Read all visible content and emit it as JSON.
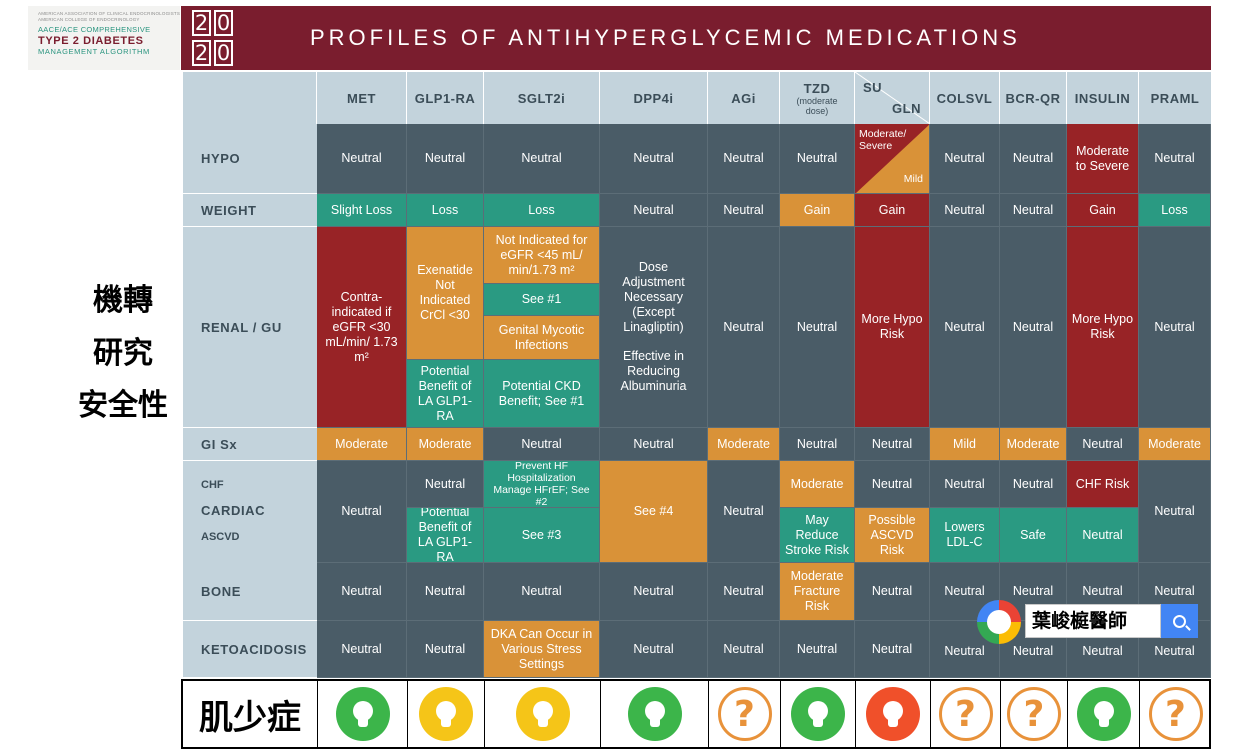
{
  "logo": {
    "line1": "AMERICAN ASSOCIATION OF CLINICAL ENDOCRINOLOGISTS",
    "line1b": "AMERICAN COLLEGE OF ENDOCRINOLOGY",
    "line2": "AACE/ACE COMPREHENSIVE",
    "line3": "TYPE 2 DIABETES",
    "line4": "MANAGEMENT ALGORITHM",
    "year_digits": [
      "2",
      "0",
      "2",
      "0"
    ]
  },
  "banner_title": "PROFILES OF ANTIHYPERGLYCEMIC MEDICATIONS",
  "side_text": [
    "機轉",
    "研究",
    "安全性"
  ],
  "columns": {
    "met": "MET",
    "glp1": "GLP1-RA",
    "sglt2": "SGLT2i",
    "dpp4": "DPP4i",
    "agi": "AGi",
    "tzd": "TZD",
    "tzd_note": "(moderate dose)",
    "su": "SU",
    "gln": "GLN",
    "colsvl": "COLSVL",
    "bcrqr": "BCR-QR",
    "insulin": "INSULIN",
    "praml": "PRAML"
  },
  "rows": {
    "hypo": "HYPO",
    "weight": "WEIGHT",
    "renal": "RENAL / GU",
    "gisx": "GI Sx",
    "chf": "CHF",
    "cardiac": "CARDIAC",
    "ascvd": "ASCVD",
    "bone": "BONE",
    "keto": "KETOACIDOSIS"
  },
  "cells": {
    "hypo": {
      "met": "Neutral",
      "glp1": "Neutral",
      "sglt2": "Neutral",
      "dpp4": "Neutral",
      "agi": "Neutral",
      "tzd": "Neutral",
      "su": "Moderate/ Severe",
      "gln": "Mild",
      "colsvl": "Neutral",
      "bcrqr": "Neutral",
      "insulin": "Moderate to Severe",
      "praml": "Neutral"
    },
    "weight": {
      "met": "Slight Loss",
      "glp1": "Loss",
      "sglt2": "Loss",
      "dpp4": "Neutral",
      "agi": "Neutral",
      "tzd": "Gain",
      "su": "Gain",
      "colsvl": "Neutral",
      "bcrqr": "Neutral",
      "insulin": "Gain",
      "praml": "Loss"
    },
    "renal": {
      "met": "Contra-indicated if eGFR <30 mL/min/ 1.73 m²",
      "glp1_top": "Exenatide Not Indicated CrCl <30",
      "glp1_bottom": "Potential Benefit of LA GLP1-RA",
      "sglt2_a": "Not Indicated for eGFR <45 mL/ min/1.73 m²",
      "sglt2_b": "See #1",
      "sglt2_c": "Genital Mycotic Infections",
      "sglt2_d": "Potential CKD Benefit; See #1",
      "dpp4_a": "Dose Adjustment Necessary (Except Linagliptin)",
      "dpp4_b": "Effective in Reducing Albuminuria",
      "agi": "Neutral",
      "tzd": "Neutral",
      "su": "More Hypo Risk",
      "colsvl": "Neutral",
      "bcrqr": "Neutral",
      "insulin": "More Hypo Risk",
      "praml": "Neutral"
    },
    "gisx": {
      "met": "Moderate",
      "glp1": "Moderate",
      "sglt2": "Neutral",
      "dpp4": "Neutral",
      "agi": "Moderate",
      "tzd": "Neutral",
      "su": "Neutral",
      "colsvl": "Mild",
      "bcrqr": "Moderate",
      "insulin": "Neutral",
      "praml": "Moderate"
    },
    "cardiac": {
      "met": "Neutral",
      "glp1_chf": "Neutral",
      "glp1_ascvd": "Potential Benefit of LA GLP1-RA",
      "sglt2_chf": "Prevent HF Hospitalization Manage HFrEF; See #2",
      "sglt2_ascvd": "See #3",
      "dpp4": "See #4",
      "agi": "Neutral",
      "tzd_chf": "Moderate",
      "tzd_ascvd": "May Reduce Stroke Risk",
      "su_chf": "Neutral",
      "su_ascvd": "Possible ASCVD Risk",
      "colsvl_chf": "Neutral",
      "colsvl_ascvd": "Lowers LDL-C",
      "bcrqr_chf": "Neutral",
      "bcrqr_ascvd": "Safe",
      "insulin_chf": "CHF Risk",
      "insulin_ascvd": "Neutral",
      "praml": "Neutral"
    },
    "bone": {
      "met": "Neutral",
      "glp1": "Neutral",
      "sglt2": "Neutral",
      "dpp4": "Neutral",
      "agi": "Neutral",
      "tzd": "Moderate Fracture Risk",
      "su": "Neutral",
      "colsvl": "Neutral",
      "bcrqr": "Neutral",
      "insulin": "Neutral",
      "praml": "Neutral"
    },
    "keto": {
      "met": "Neutral",
      "glp1": "Neutral",
      "sglt2": "DKA Can Occur in Various Stress Settings",
      "dpp4": "Neutral",
      "agi": "Neutral",
      "tzd": "Neutral",
      "su": "Neutral",
      "colsvl": "Neutral",
      "bcrqr": "Neutral",
      "insulin": "Neutral",
      "praml": "Neutral"
    }
  },
  "sarcopenia": {
    "label": "肌少症",
    "question_mark": "?",
    "icons": [
      {
        "col": "met",
        "icon": "lightbulb-icon",
        "color": "#3cb54a"
      },
      {
        "col": "glp1",
        "icon": "lightbulb-icon",
        "color": "#f5c518"
      },
      {
        "col": "sglt2",
        "icon": "lightbulb-icon",
        "color": "#f5c518"
      },
      {
        "col": "dpp4",
        "icon": "lightbulb-icon",
        "color": "#3cb54a"
      },
      {
        "col": "agi",
        "icon": "question-mark-icon",
        "color": "#e8923a"
      },
      {
        "col": "tzd",
        "icon": "lightbulb-icon",
        "color": "#3cb54a"
      },
      {
        "col": "su",
        "icon": "lightbulb-icon",
        "color": "#f0502a"
      },
      {
        "col": "colsvl",
        "icon": "question-mark-icon",
        "color": "#e8923a"
      },
      {
        "col": "bcrqr",
        "icon": "question-mark-icon",
        "color": "#e8923a"
      },
      {
        "col": "insulin",
        "icon": "lightbulb-icon",
        "color": "#3cb54a"
      },
      {
        "col": "praml",
        "icon": "question-mark-icon",
        "color": "#e8923a"
      }
    ]
  },
  "watermark": {
    "search_text": "葉峻榳醫師",
    "search_icon": "search-icon"
  }
}
